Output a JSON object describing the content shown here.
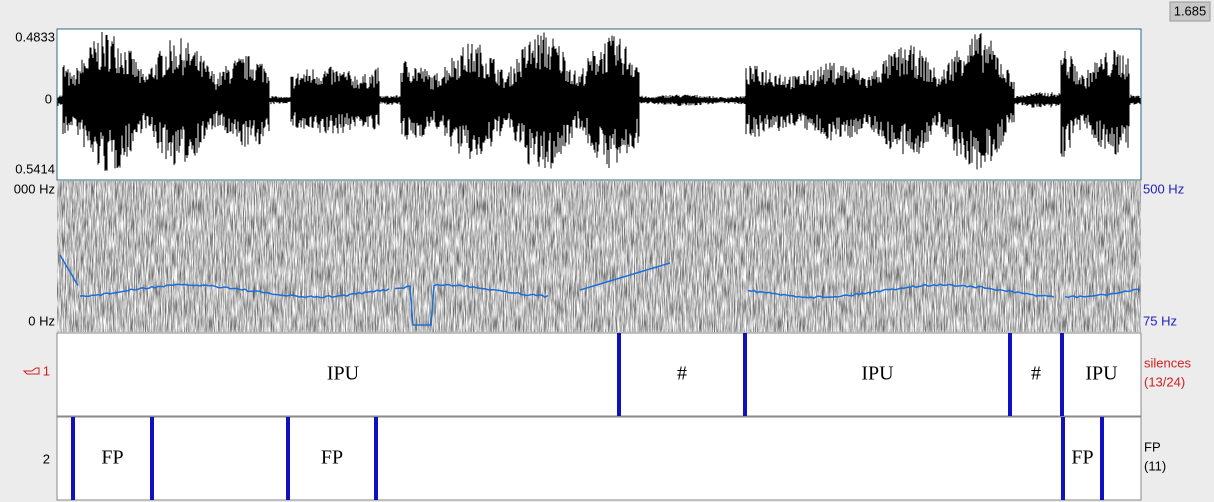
{
  "header": {
    "time": "1.685"
  },
  "waveform": {
    "top": "0.4833",
    "mid": "0",
    "bottom": "0.5414"
  },
  "spectrogram": {
    "left_top": "000 Hz",
    "left_bottom": "0 Hz",
    "right_top": "500 Hz",
    "right_bottom": "75 Hz"
  },
  "tiers": [
    {
      "number": "1",
      "name": "silences",
      "count": "(13/24)",
      "intervals": [
        "IPU",
        "#",
        "IPU",
        "#",
        "IPU"
      ]
    },
    {
      "number": "2",
      "name": "FP",
      "count": "(11)",
      "intervals": [
        "FP",
        "FP",
        "FP"
      ]
    }
  ]
}
